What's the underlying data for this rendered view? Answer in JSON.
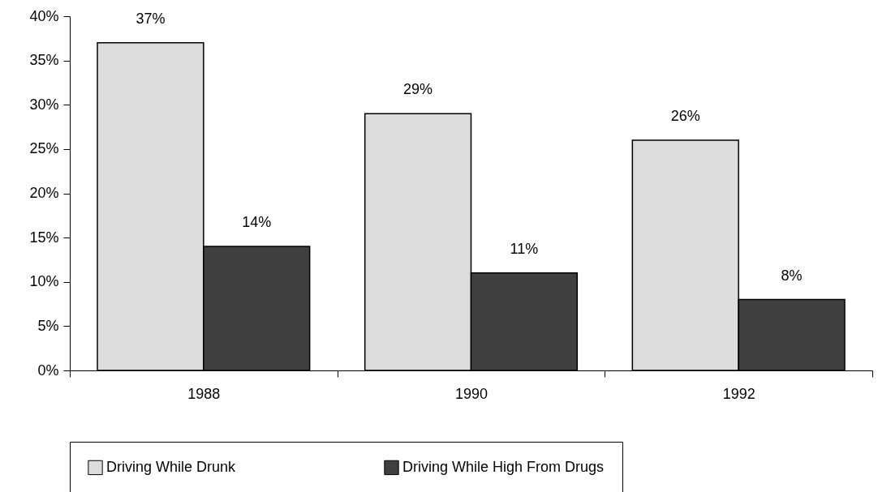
{
  "chart_data": {
    "type": "bar",
    "categories": [
      "1988",
      "1990",
      "1992"
    ],
    "series": [
      {
        "name": "Driving While Drunk",
        "color": "#dcdcdc",
        "values": [
          37,
          29,
          26
        ],
        "value_labels": [
          "37%",
          "29%",
          "26%"
        ]
      },
      {
        "name": "Driving While High From Drugs",
        "color": "#404040",
        "values": [
          14,
          11,
          8
        ],
        "value_labels": [
          "14%",
          "11%",
          "8%"
        ]
      }
    ],
    "ylim": [
      0,
      40
    ],
    "yticks": [
      {
        "value": 0,
        "label": "0%"
      },
      {
        "value": 5,
        "label": "5%"
      },
      {
        "value": 10,
        "label": "10%"
      },
      {
        "value": 15,
        "label": "15%"
      },
      {
        "value": 20,
        "label": "20%"
      },
      {
        "value": 25,
        "label": "25%"
      },
      {
        "value": 30,
        "label": "30%"
      },
      {
        "value": 35,
        "label": "35%"
      },
      {
        "value": 40,
        "label": "40%"
      }
    ],
    "grid": false,
    "legend": "bottom"
  }
}
